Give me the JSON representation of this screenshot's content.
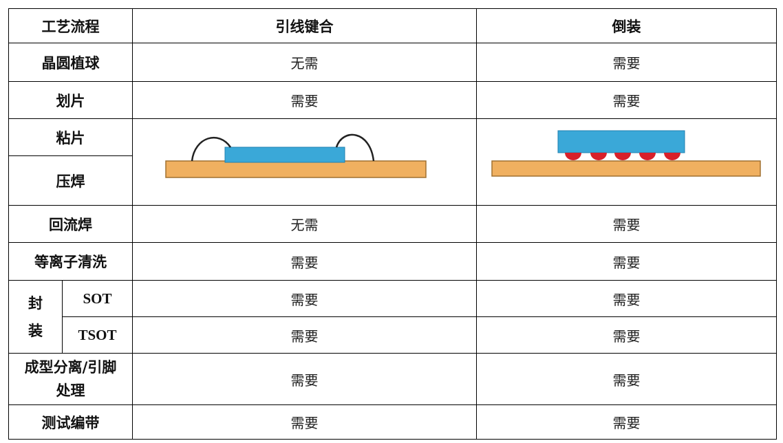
{
  "table": {
    "header": [
      "工艺流程",
      "引线键合",
      "倒装"
    ],
    "rows": [
      [
        "晶圆植球",
        "无需",
        "需要"
      ],
      [
        "划片",
        "需要",
        "需要"
      ],
      [
        "粘片"
      ],
      [
        "压焊"
      ],
      [
        "回流焊",
        "无需",
        "需要"
      ],
      [
        "等离子清洗",
        "需要",
        "需要"
      ],
      [
        "封装",
        "SOT",
        "需要",
        "需要"
      ],
      [
        "TSOT",
        "需要",
        "需要"
      ],
      [
        "成型分离/引脚处理",
        "需要",
        "需要"
      ],
      [
        "测试编带",
        "需要",
        "需要"
      ]
    ]
  }
}
